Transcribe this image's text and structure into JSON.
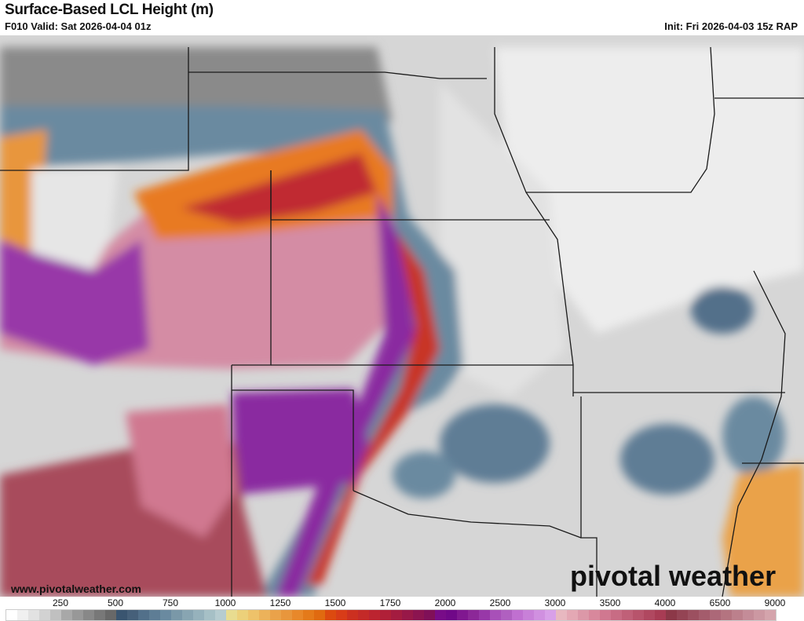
{
  "header": {
    "title": "Surface-Based LCL Height (m)",
    "valid": "F010 Valid: Sat 2026-04-04 01z",
    "init": "Init: Fri 2026-04-03 15z RAP"
  },
  "footer": {
    "website": "www.pivotalweather.com",
    "logo": "pivotal weather"
  },
  "colorbar": {
    "labels": [
      "250",
      "500",
      "750",
      "1000",
      "1250",
      "1500",
      "1750",
      "2000",
      "2500",
      "3000",
      "3500",
      "4000",
      "6500",
      "9000"
    ],
    "colors": [
      "#ffffff",
      "#f0f0f0",
      "#e2e2e2",
      "#d2d2d2",
      "#c0c0c0",
      "#a8a8a8",
      "#989898",
      "#888888",
      "#787878",
      "#686868",
      "#3a5570",
      "#46607a",
      "#52708a",
      "#5e7d95",
      "#6a8aa0",
      "#7a98a8",
      "#88a5b2",
      "#96b2bc",
      "#a6c0c6",
      "#b6ccd0",
      "#e8dc90",
      "#ecd07a",
      "#eec26a",
      "#ecb25a",
      "#eaa24a",
      "#e8963c",
      "#e8882a",
      "#e47a1a",
      "#e06a10",
      "#dc4a10",
      "#d83c18",
      "#cc3020",
      "#c42a28",
      "#bc2430",
      "#b02038",
      "#a41c40",
      "#981848",
      "#8c1450",
      "#801058",
      "#780c88",
      "#700888",
      "#801890",
      "#8c2898",
      "#9838a8",
      "#a850b8",
      "#b060c0",
      "#c070d0",
      "#c880d8",
      "#d090e0",
      "#d8a0e8",
      "#e8b8c0",
      "#e4a8b4",
      "#dc98a8",
      "#d8889c",
      "#d07890",
      "#c86c84",
      "#c06078",
      "#b8546c",
      "#b04860",
      "#a83c54",
      "#8c3848",
      "#944454",
      "#9c5060",
      "#a45c6c",
      "#ac6878",
      "#b47480",
      "#bc808c",
      "#c48c98",
      "#cc98a2",
      "#d4a4ac"
    ]
  }
}
